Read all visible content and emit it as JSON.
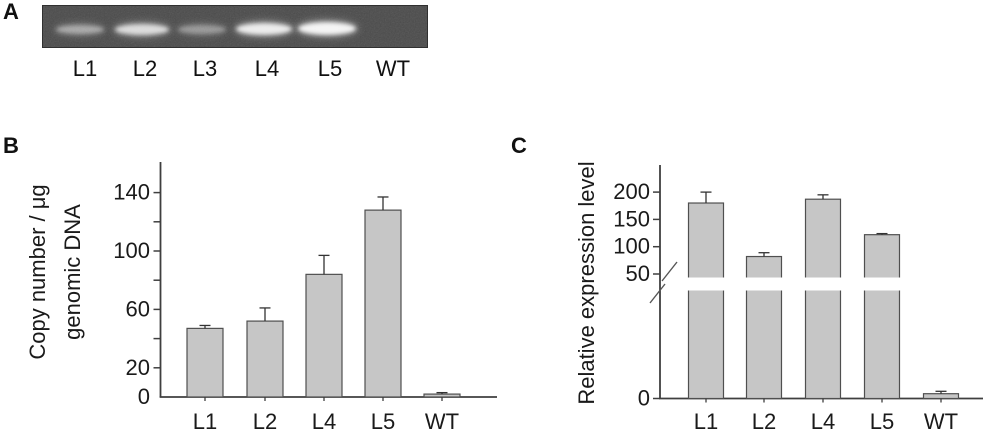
{
  "figure": {
    "background": "#ffffff",
    "text_color": "#1a1a1a",
    "axis_color": "#3f3f3f",
    "bar_fill": "#c6c6c6",
    "bar_stroke": "#4f4f4f",
    "gel_background": "#4a4a4a"
  },
  "panel_a": {
    "label": "A",
    "lane_labels": [
      "L1",
      "L2",
      "L3",
      "L4",
      "L5",
      "WT"
    ],
    "bands": [
      {
        "lane": "L1",
        "present": true,
        "intensity": 0.55
      },
      {
        "lane": "L2",
        "present": true,
        "intensity": 0.85
      },
      {
        "lane": "L3",
        "present": true,
        "intensity": 0.45
      },
      {
        "lane": "L4",
        "present": true,
        "intensity": 0.95
      },
      {
        "lane": "L5",
        "present": true,
        "intensity": 1.0
      },
      {
        "lane": "WT",
        "present": false,
        "intensity": 0
      }
    ]
  },
  "panel_b": {
    "label": "B"
  },
  "panel_c": {
    "label": "C"
  },
  "chart_data": [
    {
      "id": "copy-number",
      "panel": "B",
      "type": "bar",
      "title": "",
      "xlabel": "",
      "ylabel": "Copy number / μg genomic DNA",
      "ylabel_lines": [
        "Copy number / μg",
        "genomic DNA"
      ],
      "categories": [
        "L1",
        "L2",
        "L4",
        "L5",
        "WT"
      ],
      "values": [
        47,
        52,
        84,
        128,
        2
      ],
      "errors_plus": [
        2,
        9,
        13,
        9,
        1
      ],
      "ylim": [
        0,
        160
      ],
      "ytick_step": 20,
      "ytick_labeled": [
        0,
        20,
        60,
        100,
        140
      ],
      "grid": false,
      "legend": null
    },
    {
      "id": "relative-expression",
      "panel": "C",
      "type": "bar",
      "title": "",
      "xlabel": "",
      "ylabel": "Relative expression level",
      "ylabel_lines": [
        "Relative expression level"
      ],
      "categories": [
        "L1",
        "L2",
        "L4",
        "L5",
        "WT"
      ],
      "values": [
        180,
        82,
        187,
        122,
        2
      ],
      "errors_plus": [
        20,
        7,
        8,
        2,
        1
      ],
      "axis_break": {
        "lower_range": [
          0,
          45
        ],
        "upper_range": [
          50,
          250
        ]
      },
      "ytick_labeled": [
        0,
        50,
        100,
        150,
        200
      ],
      "grid": false,
      "legend": null
    }
  ]
}
